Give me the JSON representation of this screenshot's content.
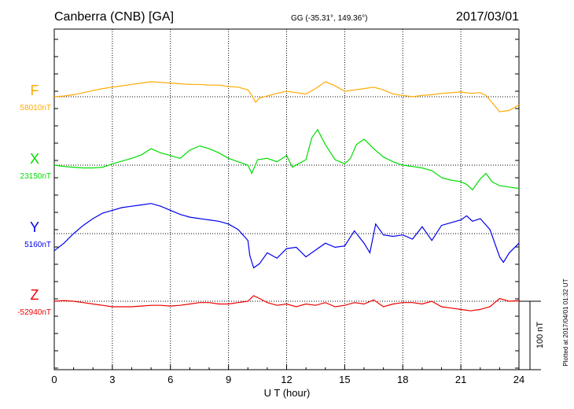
{
  "chart_data": {
    "type": "line",
    "title": "Canberra (CNB)  [GA]",
    "subtitle": "GG (-35.31°, 149.36°)",
    "date": "2017/03/01",
    "xlabel": "U T (hour)",
    "xlim": [
      0,
      24
    ],
    "xticks": [
      "0",
      "3",
      "6",
      "9",
      "12",
      "15",
      "18",
      "21",
      "24"
    ],
    "grid": true,
    "scale_bar": {
      "label": "100 nT",
      "value": 100
    },
    "footer": "Plotted at 2017/04/01 01:32 UT",
    "series": [
      {
        "name": "F",
        "baseline_label": "58010nT",
        "color": "#ffaa00",
        "x": [
          0,
          0.5,
          1,
          1.5,
          2,
          2.5,
          3,
          3.5,
          4,
          4.5,
          5,
          5.5,
          6,
          6.5,
          7,
          7.5,
          8,
          8.5,
          9,
          9.5,
          10,
          10.2,
          10.4,
          10.6,
          11,
          11.5,
          12,
          12.5,
          13,
          13.5,
          14,
          14.5,
          15,
          15.5,
          16,
          16.5,
          17,
          17.5,
          18,
          18.5,
          19,
          19.5,
          20,
          20.5,
          21,
          21.5,
          22,
          22.3,
          22.6,
          23,
          23.5,
          24
        ],
        "values": [
          0,
          1,
          3,
          6,
          9,
          12,
          14,
          16,
          18,
          20,
          22,
          21,
          20,
          19,
          18,
          18,
          17,
          17,
          15,
          14,
          10,
          2,
          -8,
          -2,
          1,
          5,
          8,
          6,
          4,
          12,
          22,
          16,
          8,
          10,
          12,
          14,
          10,
          4,
          2,
          0,
          2,
          3,
          5,
          6,
          7,
          5,
          6,
          2,
          -8,
          -22,
          -20,
          -12
        ]
      },
      {
        "name": "X",
        "baseline_label": "23150nT",
        "color": "#00dd00",
        "x": [
          0,
          0.5,
          1,
          1.5,
          2,
          2.5,
          3,
          3.5,
          4,
          4.5,
          5,
          5.5,
          6,
          6.5,
          7,
          7.5,
          8,
          8.5,
          9,
          9.5,
          10,
          10.2,
          10.5,
          11,
          11.5,
          12,
          12.3,
          12.6,
          13,
          13.3,
          13.6,
          14,
          14.5,
          15,
          15.3,
          15.6,
          16,
          16.5,
          17,
          17.5,
          18,
          18.5,
          19,
          19.5,
          20,
          20.5,
          21,
          21.3,
          21.6,
          22,
          22.3,
          22.6,
          23,
          23.5,
          24
        ],
        "values": [
          0,
          -2,
          -3,
          -4,
          -4,
          -3,
          2,
          6,
          10,
          15,
          24,
          18,
          14,
          10,
          22,
          28,
          24,
          18,
          10,
          5,
          0,
          -12,
          8,
          10,
          5,
          14,
          -3,
          2,
          8,
          40,
          52,
          30,
          8,
          2,
          10,
          30,
          38,
          24,
          12,
          5,
          0,
          -2,
          -4,
          -8,
          -18,
          -22,
          -24,
          -28,
          -36,
          -20,
          -12,
          -24,
          -30,
          -32,
          -34
        ]
      },
      {
        "name": "Y",
        "baseline_label": "5160nT",
        "color": "#0000ee",
        "x": [
          0,
          0.5,
          1,
          1.5,
          2,
          2.5,
          3,
          3.5,
          4,
          4.5,
          5,
          5.5,
          6,
          6.5,
          7,
          7.5,
          8,
          8.5,
          9,
          9.5,
          10,
          10.1,
          10.3,
          10.6,
          11,
          11.5,
          12,
          12.5,
          13,
          13.5,
          14,
          14.5,
          15,
          15.5,
          16,
          16.3,
          16.6,
          17,
          17.5,
          18,
          18.5,
          19,
          19.5,
          20,
          20.5,
          21,
          21.3,
          21.6,
          22,
          22.5,
          23,
          23.2,
          23.5,
          24
        ],
        "values": [
          -25,
          -14,
          0,
          12,
          22,
          30,
          34,
          38,
          40,
          42,
          44,
          40,
          34,
          28,
          24,
          22,
          20,
          18,
          14,
          6,
          -10,
          -32,
          -50,
          -44,
          -28,
          -36,
          -22,
          -20,
          -34,
          -24,
          -14,
          -20,
          -18,
          4,
          -14,
          -28,
          14,
          -2,
          -4,
          -2,
          -8,
          10,
          -10,
          12,
          16,
          20,
          26,
          18,
          22,
          6,
          -34,
          -42,
          -28,
          -14
        ]
      },
      {
        "name": "Z",
        "baseline_label": "-52940nT",
        "color": "#ee0000",
        "x": [
          0,
          0.5,
          1,
          1.5,
          2,
          2.5,
          3,
          3.5,
          4,
          4.5,
          5,
          5.5,
          6,
          6.5,
          7,
          7.5,
          8,
          8.5,
          9,
          9.5,
          10,
          10.3,
          10.6,
          11,
          11.5,
          12,
          12.5,
          13,
          13.5,
          14,
          14.5,
          15,
          15.5,
          16,
          16.5,
          17,
          17.5,
          18,
          18.5,
          19,
          19.5,
          20,
          20.5,
          21,
          21.5,
          22,
          22.5,
          23,
          23.5,
          24
        ],
        "values": [
          0,
          1,
          0,
          -2,
          -4,
          -6,
          -8,
          -8,
          -8,
          -7,
          -6,
          -6,
          -7,
          -6,
          -4,
          -2,
          -2,
          -4,
          -4,
          -2,
          0,
          8,
          4,
          -2,
          -6,
          -4,
          -8,
          -4,
          -6,
          -2,
          -8,
          -6,
          -2,
          -4,
          2,
          -8,
          -4,
          -2,
          -2,
          -4,
          0,
          -8,
          -10,
          -12,
          -14,
          -12,
          -8,
          4,
          0,
          1
        ]
      }
    ]
  }
}
